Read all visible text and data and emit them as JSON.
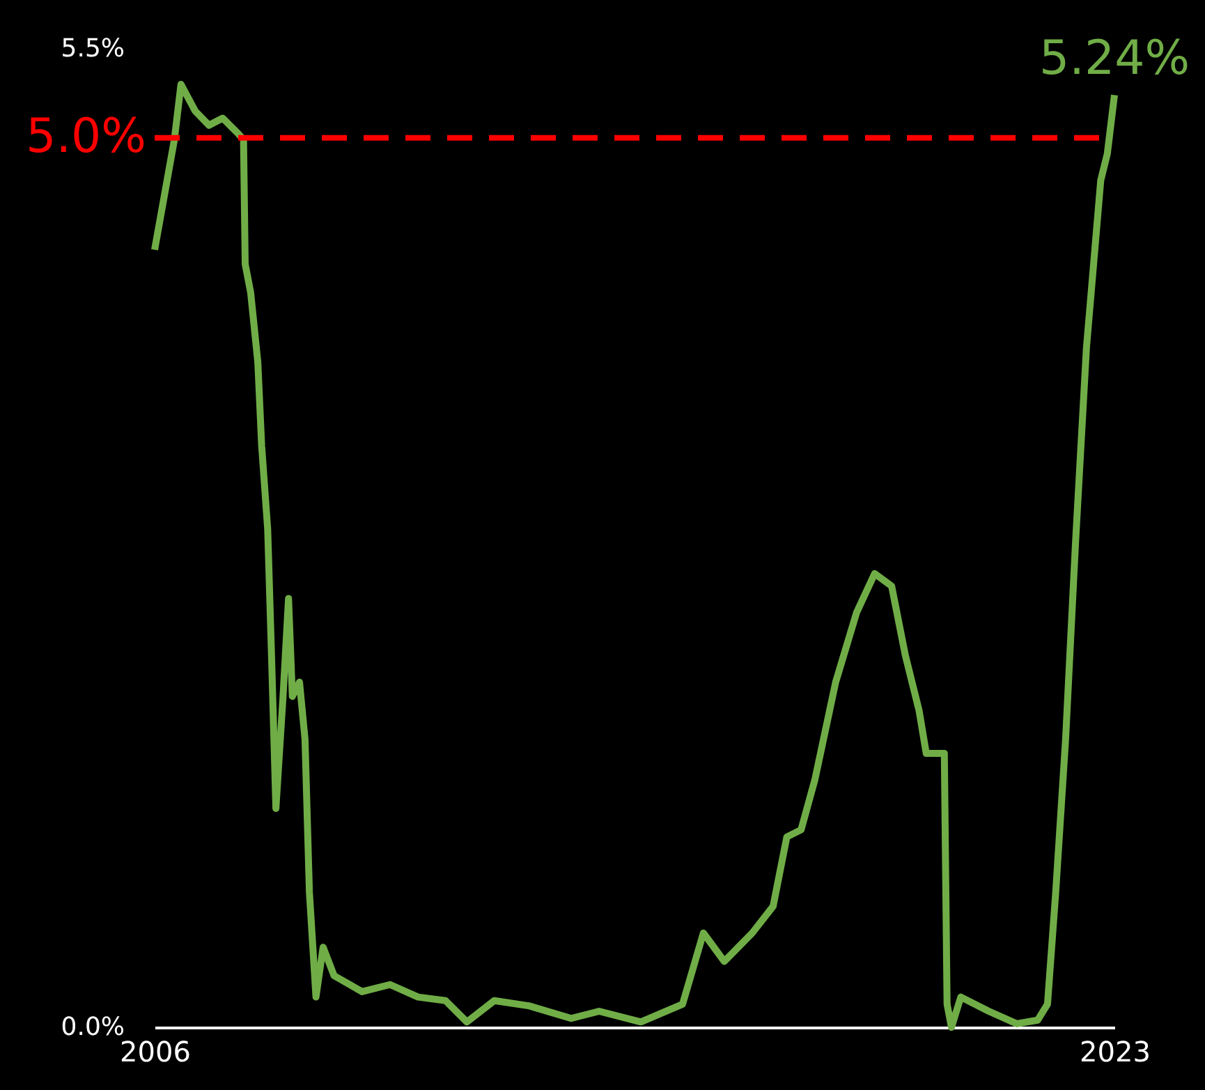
{
  "chart_data": {
    "type": "line",
    "x": [
      2006.0,
      2006.18,
      2006.36,
      2006.48,
      2006.74,
      2006.99,
      2007.24,
      2007.5,
      2007.62,
      2007.65,
      2007.75,
      2007.88,
      2007.95,
      2008.06,
      2008.13,
      2008.21,
      2008.34,
      2008.44,
      2008.51,
      2008.64,
      2008.74,
      2008.82,
      2008.94,
      2009.07,
      2009.27,
      2009.78,
      2010.29,
      2010.8,
      2011.3,
      2011.69,
      2012.19,
      2012.83,
      2013.59,
      2014.1,
      2014.86,
      2015.62,
      2016.0,
      2016.38,
      2016.89,
      2017.27,
      2017.52,
      2017.78,
      2018.03,
      2018.41,
      2018.79,
      2019.12,
      2019.43,
      2019.68,
      2019.93,
      2020.06,
      2020.39,
      2020.44,
      2020.52,
      2020.69,
      2021.2,
      2021.71,
      2022.09,
      2022.27,
      2022.42,
      2022.6,
      2022.78,
      2022.98,
      2023.24,
      2023.36,
      2023.49
    ],
    "series": [
      {
        "color": "#70ad47",
        "values": [
          4.37,
          4.68,
          4.99,
          5.3,
          5.15,
          5.07,
          5.11,
          5.03,
          4.99,
          4.29,
          4.13,
          3.74,
          3.27,
          2.8,
          2.09,
          1.23,
          1.86,
          2.41,
          1.86,
          1.94,
          1.62,
          0.76,
          0.17,
          0.45,
          0.29,
          0.2,
          0.24,
          0.17,
          0.15,
          0.03,
          0.15,
          0.12,
          0.05,
          0.09,
          0.03,
          0.13,
          0.53,
          0.37,
          0.53,
          0.68,
          1.07,
          1.11,
          1.39,
          1.94,
          2.33,
          2.55,
          2.48,
          2.09,
          1.78,
          1.54,
          1.54,
          0.13,
          0.0,
          0.17,
          0.09,
          0.02,
          0.04,
          0.13,
          0.76,
          1.62,
          2.72,
          3.82,
          4.76,
          4.91,
          5.24
        ]
      }
    ],
    "xlim": [
      2006,
      2023.49
    ],
    "xticks": [
      2006,
      {
        "value": 2023.49,
        "label": "2023"
      }
    ],
    "ylim": [
      0,
      5.5
    ],
    "yticks": [
      {
        "value": 0,
        "label": "0.0%"
      },
      {
        "value": 5.5,
        "label": "5.5%"
      }
    ],
    "ref_lines": [
      {
        "axis": "y",
        "value": 5.0,
        "label": "5.0%",
        "color": "#ff0000",
        "line_style": "dashed"
      }
    ],
    "annotations": [
      {
        "text": "5.24%",
        "x": 2023.49,
        "y": 5.24
      }
    ],
    "grid": false
  }
}
